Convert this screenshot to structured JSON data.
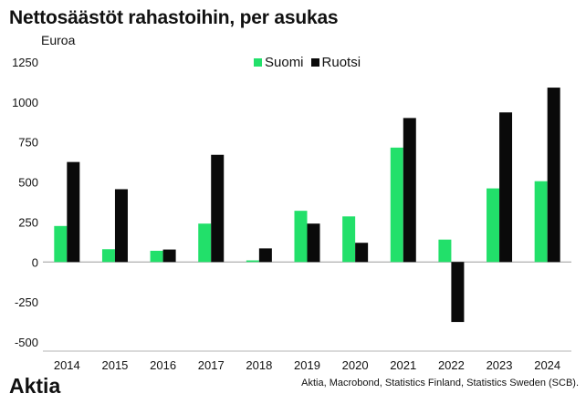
{
  "chart_data": {
    "type": "bar",
    "title": "Nettosäästöt rahastoihin, per asukas",
    "ylabel": "Euroa",
    "xlabel": "",
    "categories": [
      "2014",
      "2015",
      "2016",
      "2017",
      "2018",
      "2019",
      "2020",
      "2021",
      "2022",
      "2023",
      "2024"
    ],
    "series": [
      {
        "name": "Suomi",
        "color": "#22e06a",
        "values": [
          225,
          80,
          70,
          240,
          10,
          320,
          285,
          715,
          140,
          460,
          505
        ]
      },
      {
        "name": "Ruotsi",
        "color": "#0a0a0a",
        "values": [
          625,
          455,
          78,
          670,
          85,
          240,
          120,
          900,
          -375,
          935,
          1090
        ]
      }
    ],
    "ylim": [
      -500,
      1250
    ],
    "yticks": [
      -500,
      -250,
      0,
      250,
      500,
      750,
      1000,
      1250
    ],
    "ytick_labels": [
      "-500",
      "-250",
      "0",
      "250",
      "500",
      "750",
      "1000",
      "1250"
    ],
    "grid": false,
    "legend_position": "top-center"
  },
  "brand": "Aktia",
  "source": "Aktia, Macrobond, Statistics Finland, Statistics Sweden (SCB)."
}
